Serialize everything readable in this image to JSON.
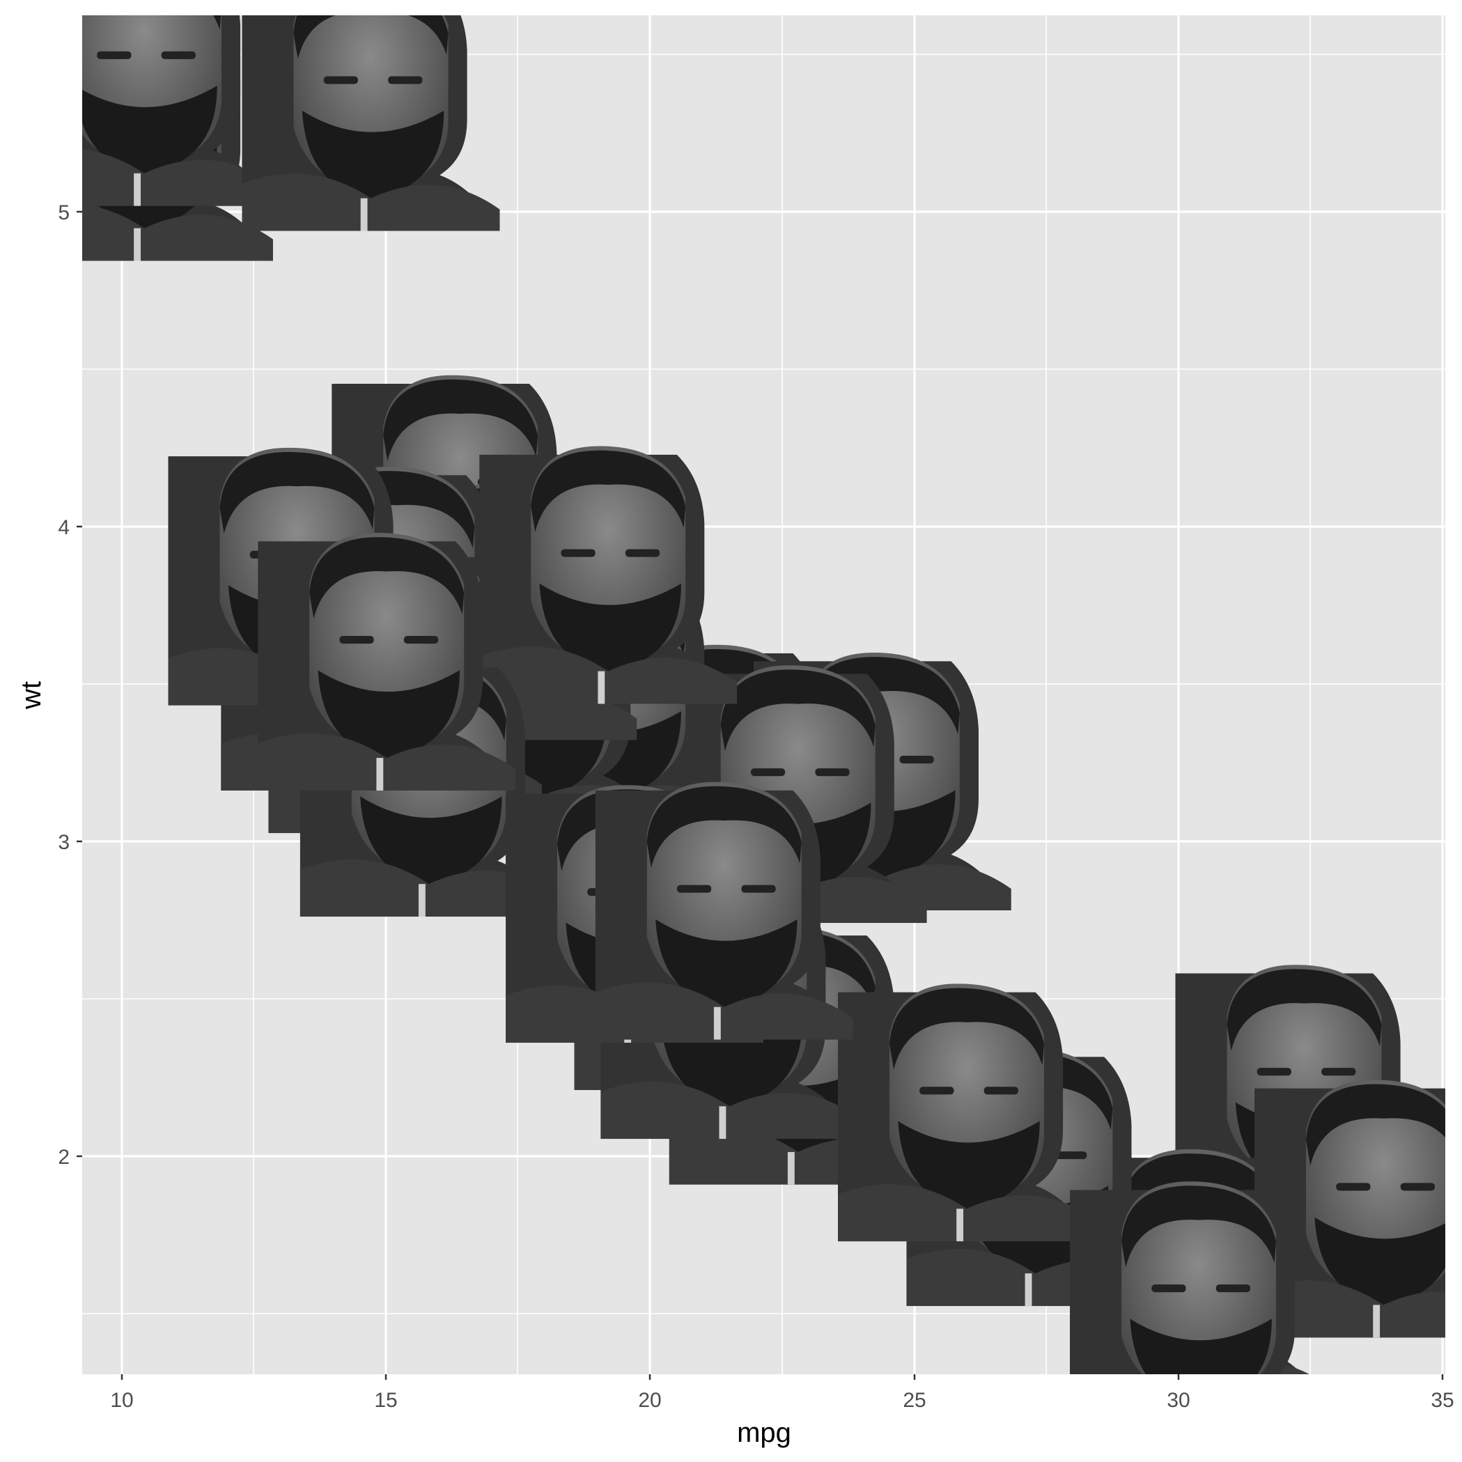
{
  "chart_data": {
    "type": "scatter",
    "marker": "grayscale-face-image",
    "title": "",
    "xlabel": "mpg",
    "ylabel": "wt",
    "xlim": [
      9.225,
      35.075
    ],
    "ylim": [
      1.31,
      5.62
    ],
    "x_ticks": [
      10,
      15,
      20,
      25,
      30,
      35
    ],
    "x_tick_labels": [
      "10",
      "15",
      "20",
      "25",
      "30",
      "35"
    ],
    "y_ticks": [
      2,
      3,
      4,
      5
    ],
    "y_tick_labels": [
      "2",
      "3",
      "4",
      "5"
    ],
    "grid": true,
    "legend": "none",
    "panel_background": "#e5e5e5",
    "grid_color": "#ffffff",
    "points": [
      {
        "x": 21.0,
        "y": 2.62
      },
      {
        "x": 21.0,
        "y": 2.875
      },
      {
        "x": 22.8,
        "y": 2.32
      },
      {
        "x": 21.4,
        "y": 3.215
      },
      {
        "x": 18.7,
        "y": 3.44
      },
      {
        "x": 18.1,
        "y": 3.46
      },
      {
        "x": 14.3,
        "y": 3.57
      },
      {
        "x": 24.4,
        "y": 3.19
      },
      {
        "x": 22.8,
        "y": 3.15
      },
      {
        "x": 19.2,
        "y": 3.44
      },
      {
        "x": 17.8,
        "y": 3.44
      },
      {
        "x": 16.4,
        "y": 4.07
      },
      {
        "x": 17.3,
        "y": 3.73
      },
      {
        "x": 15.2,
        "y": 3.78
      },
      {
        "x": 10.4,
        "y": 5.25
      },
      {
        "x": 10.4,
        "y": 5.424
      },
      {
        "x": 14.7,
        "y": 5.345
      },
      {
        "x": 32.4,
        "y": 2.2
      },
      {
        "x": 30.4,
        "y": 1.615
      },
      {
        "x": 33.9,
        "y": 1.835
      },
      {
        "x": 21.5,
        "y": 2.465
      },
      {
        "x": 15.5,
        "y": 3.52
      },
      {
        "x": 15.2,
        "y": 3.435
      },
      {
        "x": 13.3,
        "y": 3.84
      },
      {
        "x": 19.2,
        "y": 3.845
      },
      {
        "x": 27.3,
        "y": 1.935
      },
      {
        "x": 26.0,
        "y": 2.14
      },
      {
        "x": 30.4,
        "y": 1.513
      },
      {
        "x": 15.8,
        "y": 3.17
      },
      {
        "x": 19.7,
        "y": 2.77
      },
      {
        "x": 15.0,
        "y": 3.57
      },
      {
        "x": 21.4,
        "y": 2.78
      }
    ]
  }
}
